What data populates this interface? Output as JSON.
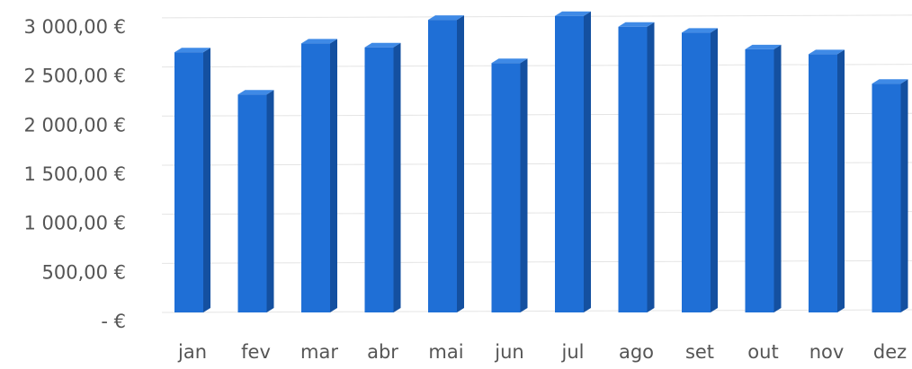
{
  "chart_data": {
    "type": "bar",
    "categories": [
      "jan",
      "fev",
      "mar",
      "abr",
      "mai",
      "jun",
      "jul",
      "ago",
      "set",
      "out",
      "nov",
      "dez"
    ],
    "values": [
      2650,
      2220,
      2740,
      2700,
      2980,
      2540,
      3020,
      2910,
      2850,
      2680,
      2630,
      2330
    ],
    "color": "#1f6fd6",
    "ylim": [
      0,
      3100
    ],
    "yticks": [
      {
        "value": 0,
        "label": "-  €"
      },
      {
        "value": 500,
        "label": "500,00 €"
      },
      {
        "value": 1000,
        "label": "1 000,00 €"
      },
      {
        "value": 1500,
        "label": "1 500,00 €"
      },
      {
        "value": 2000,
        "label": "2 000,00 €"
      },
      {
        "value": 2500,
        "label": "2 500,00 €"
      },
      {
        "value": 3000,
        "label": "3 000,00 €"
      }
    ],
    "grid": true
  }
}
